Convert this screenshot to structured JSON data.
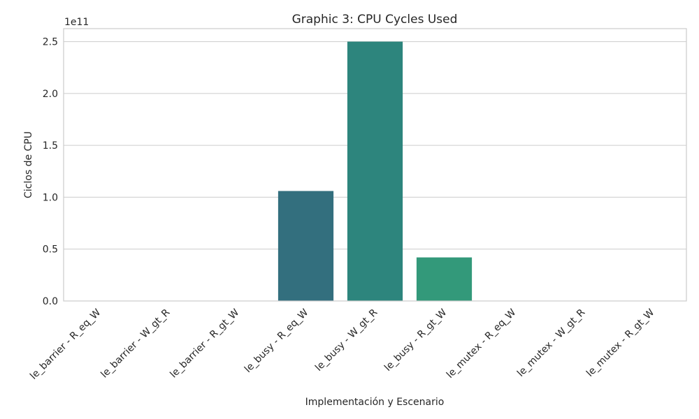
{
  "chart_data": {
    "type": "bar",
    "title": "Graphic 3: CPU Cycles Used",
    "xlabel": "Implementación y Escenario",
    "ylabel": "Ciclos de CPU",
    "offset_text": "1e11",
    "scale": 100000000000,
    "ylim": [
      0,
      2.625
    ],
    "yticks": [
      "0.0",
      "0.5",
      "1.0",
      "1.5",
      "2.0",
      "2.5"
    ],
    "grid": true,
    "categories": [
      "le_barrier - R_eq_W",
      "le_barrier - W_gt_R",
      "le_barrier - R_gt_W",
      "le_busy - R_eq_W",
      "le_busy - W_gt_R",
      "le_busy - R_gt_W",
      "le_mutex - R_eq_W",
      "le_mutex - W_gt_R",
      "le_mutex - R_gt_W"
    ],
    "values": [
      0.002,
      0.002,
      0.002,
      1.06,
      2.5,
      0.42,
      0.002,
      0.002,
      0.002
    ],
    "colors": [
      "#472d7b",
      "#3b528b",
      "#2c728e",
      "#336f7e",
      "#2d857d",
      "#33997a",
      "#3eb36f",
      "#6ccd5a",
      "#b5de2b"
    ]
  }
}
